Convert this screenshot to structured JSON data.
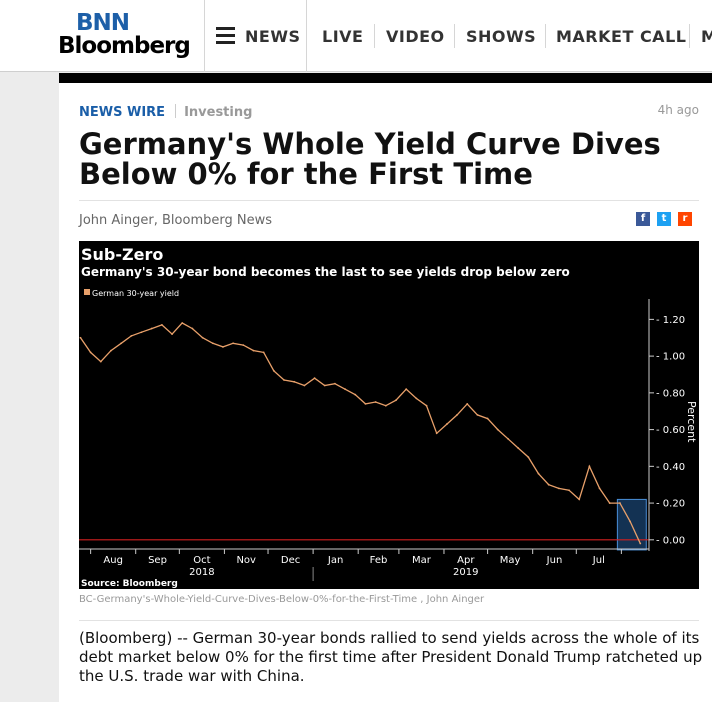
{
  "header": {
    "logo_top": "BNN",
    "logo_bottom": "Bloomberg",
    "nav": [
      "NEWS",
      "LIVE",
      "VIDEO",
      "SHOWS",
      "MARKET CALL",
      "M"
    ]
  },
  "article": {
    "section": "NEWS WIRE",
    "category": "Investing",
    "time_ago": "4h ago",
    "headline": "Germany's Whole Yield Curve Dives Below 0% for the First Time",
    "byline": "John Ainger, Bloomberg News",
    "share_icons": [
      "facebook-icon",
      "twitter-icon",
      "reddit-icon"
    ],
    "image_caption": "BC-Germany's-Whole-Yield-Curve-Dives-Below-0%-for-the-First-Time , John Ainger",
    "body": "(Bloomberg) -- German 30-year bonds rallied to send yields across the whole of its debt market below 0% for the first time after President Donald Trump ratcheted up the U.S. trade war with China."
  },
  "colors": {
    "brand_blue": "#1d5fa8",
    "series": "#e8a06a",
    "zero_line": "#d02020",
    "highlight": "#2a6fb8"
  },
  "chart_data": {
    "type": "line",
    "title": "Sub-Zero",
    "subtitle": "Germany's 30-year bond becomes the last to see yields drop below zero",
    "legend": "German 30-year yield",
    "ylabel": "Percent",
    "source": "Source: Bloomberg",
    "ylim": [
      -0.05,
      1.3
    ],
    "yticks": [
      0.0,
      0.2,
      0.4,
      0.6,
      0.8,
      1.0,
      1.2
    ],
    "ytick_labels": [
      "0.00",
      "0.20",
      "0.40",
      "0.60",
      "0.80",
      "1.00",
      "1.20"
    ],
    "xticks": [
      {
        "label": "Aug",
        "year": ""
      },
      {
        "label": "Sep",
        "year": ""
      },
      {
        "label": "Oct",
        "year": "2018"
      },
      {
        "label": "Nov",
        "year": ""
      },
      {
        "label": "Dec",
        "year": ""
      },
      {
        "label": "Jan",
        "year": ""
      },
      {
        "label": "Feb",
        "year": ""
      },
      {
        "label": "Mar",
        "year": ""
      },
      {
        "label": "Apr",
        "year": "2019"
      },
      {
        "label": "May",
        "year": ""
      },
      {
        "label": "Jun",
        "year": ""
      },
      {
        "label": "Jul",
        "year": ""
      }
    ],
    "series": [
      {
        "name": "German 30-year yield",
        "x": [
          "2018-07-25",
          "2018-08-01",
          "2018-08-08",
          "2018-08-15",
          "2018-08-22",
          "2018-08-29",
          "2018-09-05",
          "2018-09-12",
          "2018-09-19",
          "2018-09-26",
          "2018-10-03",
          "2018-10-10",
          "2018-10-17",
          "2018-10-24",
          "2018-10-31",
          "2018-11-07",
          "2018-11-14",
          "2018-11-21",
          "2018-11-28",
          "2018-12-05",
          "2018-12-12",
          "2018-12-19",
          "2018-12-26",
          "2019-01-02",
          "2019-01-09",
          "2019-01-16",
          "2019-01-23",
          "2019-01-30",
          "2019-02-06",
          "2019-02-13",
          "2019-02-20",
          "2019-02-27",
          "2019-03-06",
          "2019-03-13",
          "2019-03-20",
          "2019-03-27",
          "2019-04-03",
          "2019-04-10",
          "2019-04-17",
          "2019-04-24",
          "2019-05-01",
          "2019-05-08",
          "2019-05-15",
          "2019-05-22",
          "2019-05-29",
          "2019-06-05",
          "2019-06-12",
          "2019-06-19",
          "2019-06-26",
          "2019-07-03",
          "2019-07-10",
          "2019-07-17",
          "2019-07-24",
          "2019-07-31",
          "2019-08-07",
          "2019-08-14"
        ],
        "values": [
          1.1,
          1.02,
          0.97,
          1.03,
          1.07,
          1.11,
          1.13,
          1.15,
          1.17,
          1.12,
          1.18,
          1.15,
          1.1,
          1.07,
          1.05,
          1.07,
          1.06,
          1.03,
          1.02,
          0.92,
          0.87,
          0.86,
          0.84,
          0.88,
          0.84,
          0.85,
          0.82,
          0.79,
          0.74,
          0.75,
          0.73,
          0.76,
          0.82,
          0.77,
          0.73,
          0.58,
          0.63,
          0.68,
          0.74,
          0.68,
          0.66,
          0.6,
          0.55,
          0.5,
          0.45,
          0.36,
          0.3,
          0.28,
          0.27,
          0.22,
          0.4,
          0.28,
          0.2,
          0.2,
          0.1,
          -0.02
        ]
      }
    ],
    "highlight": {
      "x_start": "2019-08-01",
      "x_end": "2019-08-14"
    },
    "grid": false,
    "legend_position": "top-left"
  }
}
